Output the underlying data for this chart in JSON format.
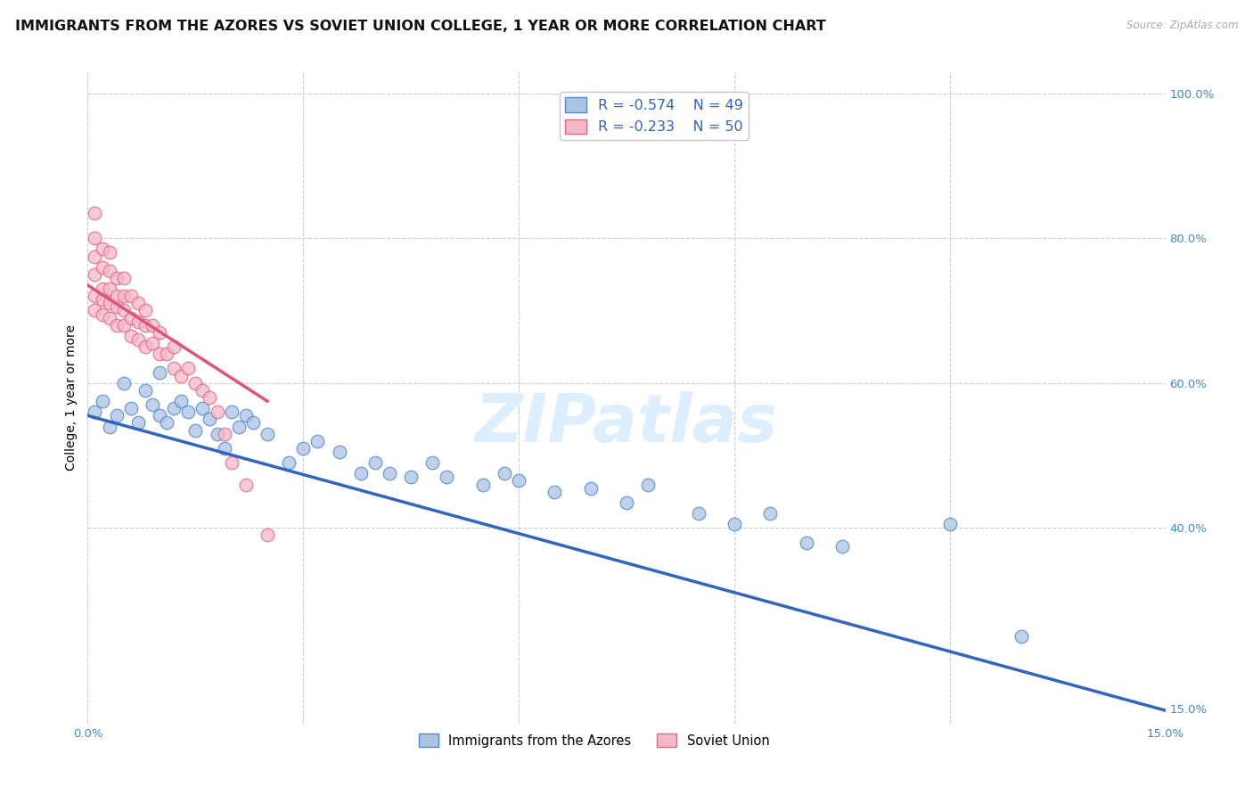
{
  "title": "IMMIGRANTS FROM THE AZORES VS SOVIET UNION COLLEGE, 1 YEAR OR MORE CORRELATION CHART",
  "source": "Source: ZipAtlas.com",
  "ylabel": "College, 1 year or more",
  "xlim": [
    0.0,
    0.15
  ],
  "ylim": [
    0.13,
    1.03
  ],
  "azores_R": -0.574,
  "azores_N": 49,
  "soviet_R": -0.233,
  "soviet_N": 50,
  "azores_dot_color": "#aac4e2",
  "azores_edge_color": "#5588cc",
  "soviet_dot_color": "#f5b8c8",
  "soviet_edge_color": "#e06888",
  "azores_line_color": "#3366bb",
  "soviet_line_color": "#dd5577",
  "gray_dash_color": "#cccccc",
  "watermark_color": "#ddeeff",
  "title_color": "#111111",
  "source_color": "#aaaaaa",
  "tick_color": "#4488cc",
  "legend_text_color": "#3366bb",
  "grid_color": "#cccccc",
  "azores_line_x0": 0.0,
  "azores_line_y0": 0.555,
  "azores_line_x1": 0.15,
  "azores_line_y1": 0.148,
  "soviet_line_x0": 0.0,
  "soviet_line_y0": 0.735,
  "soviet_line_x1": 0.025,
  "soviet_line_y1": 0.575,
  "azores_x": [
    0.001,
    0.002,
    0.003,
    0.004,
    0.005,
    0.006,
    0.007,
    0.008,
    0.009,
    0.01,
    0.01,
    0.011,
    0.012,
    0.013,
    0.014,
    0.015,
    0.016,
    0.017,
    0.018,
    0.019,
    0.02,
    0.021,
    0.022,
    0.023,
    0.025,
    0.028,
    0.03,
    0.032,
    0.035,
    0.038,
    0.04,
    0.042,
    0.045,
    0.048,
    0.05,
    0.055,
    0.058,
    0.06,
    0.065,
    0.07,
    0.075,
    0.078,
    0.085,
    0.09,
    0.095,
    0.1,
    0.105,
    0.12,
    0.13
  ],
  "azores_y": [
    0.56,
    0.575,
    0.54,
    0.555,
    0.6,
    0.565,
    0.545,
    0.59,
    0.57,
    0.555,
    0.615,
    0.545,
    0.565,
    0.575,
    0.56,
    0.535,
    0.565,
    0.55,
    0.53,
    0.51,
    0.56,
    0.54,
    0.555,
    0.545,
    0.53,
    0.49,
    0.51,
    0.52,
    0.505,
    0.475,
    0.49,
    0.475,
    0.47,
    0.49,
    0.47,
    0.46,
    0.475,
    0.465,
    0.45,
    0.455,
    0.435,
    0.46,
    0.42,
    0.405,
    0.42,
    0.38,
    0.375,
    0.405,
    0.25
  ],
  "soviet_x": [
    0.001,
    0.001,
    0.001,
    0.001,
    0.001,
    0.001,
    0.002,
    0.002,
    0.002,
    0.002,
    0.002,
    0.003,
    0.003,
    0.003,
    0.003,
    0.003,
    0.004,
    0.004,
    0.004,
    0.004,
    0.005,
    0.005,
    0.005,
    0.005,
    0.006,
    0.006,
    0.006,
    0.007,
    0.007,
    0.007,
    0.008,
    0.008,
    0.008,
    0.009,
    0.009,
    0.01,
    0.01,
    0.011,
    0.012,
    0.012,
    0.013,
    0.014,
    0.015,
    0.016,
    0.017,
    0.018,
    0.019,
    0.02,
    0.022,
    0.025
  ],
  "soviet_y": [
    0.7,
    0.72,
    0.75,
    0.775,
    0.8,
    0.835,
    0.695,
    0.715,
    0.73,
    0.76,
    0.785,
    0.69,
    0.71,
    0.73,
    0.755,
    0.78,
    0.68,
    0.705,
    0.72,
    0.745,
    0.68,
    0.7,
    0.72,
    0.745,
    0.665,
    0.69,
    0.72,
    0.66,
    0.685,
    0.71,
    0.65,
    0.68,
    0.7,
    0.655,
    0.68,
    0.64,
    0.67,
    0.64,
    0.62,
    0.65,
    0.61,
    0.62,
    0.6,
    0.59,
    0.58,
    0.56,
    0.53,
    0.49,
    0.46,
    0.39
  ],
  "title_fontsize": 11.5,
  "axis_label_fontsize": 10,
  "tick_fontsize": 9.5
}
